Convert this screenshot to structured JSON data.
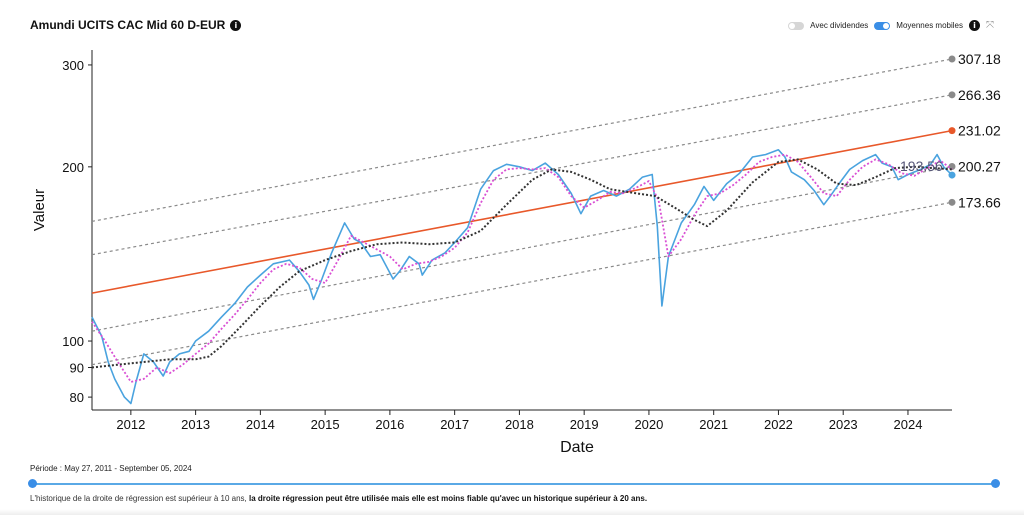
{
  "header": {
    "title": "Amundi UCITS CAC Mid 60 D-EUR",
    "toggle_dividends_label": "Avec dividendes",
    "toggle_dividends_on": false,
    "toggle_ma_label": "Moyennes mobiles",
    "toggle_ma_on": true
  },
  "footer": {
    "period_text": "Période : May 27, 2011 - September 05, 2024",
    "note_part1": "L'historique de la droite de régression est supérieur à 10 ans, ",
    "note_part2": "la droite régression peut être utilisée mais elle est moins fiable qu'avec un historique supérieur à 20 ans."
  },
  "colors": {
    "price": "#4aa3df",
    "ma_short": "#d94fd4",
    "ma_long": "#333333",
    "regression": "#e8582a",
    "channel": "#8a8a8a",
    "end_label": "#333333",
    "last_value": "#555577"
  },
  "chart_data": {
    "type": "line",
    "xlabel": "Date",
    "ylabel": "Valeur",
    "y_scale": "log",
    "xlim": [
      2011.4,
      2024.68
    ],
    "ylim": [
      76,
      307.18
    ],
    "x_ticks": [
      "2012",
      "2013",
      "2014",
      "2015",
      "2016",
      "2017",
      "2018",
      "2019",
      "2020",
      "2021",
      "2022",
      "2023",
      "2024"
    ],
    "y_ticks": [
      80,
      90,
      100,
      200,
      300
    ],
    "last_value": 193.56,
    "lines": [
      {
        "name": "upper2",
        "value_end": 307.18,
        "value_start": 161,
        "style": "dashed"
      },
      {
        "name": "upper1",
        "value_end": 266.36,
        "value_start": 141,
        "style": "dashed"
      },
      {
        "name": "regression",
        "value_end": 231.02,
        "value_start": 121,
        "style": "solid"
      },
      {
        "name": "lower1",
        "value_end": 200.27,
        "value_start": 104,
        "style": "dashed"
      },
      {
        "name": "lower2",
        "value_end": 173.66,
        "value_start": 91,
        "style": "dashed"
      }
    ],
    "end_labels": [
      "307.18",
      "266.36",
      "231.02",
      "200.27",
      "173.66"
    ],
    "price_series": {
      "x": [
        2011.4,
        2011.55,
        2011.65,
        2011.75,
        2011.9,
        2012.0,
        2012.08,
        2012.2,
        2012.35,
        2012.5,
        2012.6,
        2012.75,
        2012.9,
        2013.0,
        2013.2,
        2013.4,
        2013.6,
        2013.8,
        2014.0,
        2014.2,
        2014.45,
        2014.6,
        2014.75,
        2014.82,
        2014.95,
        2015.1,
        2015.3,
        2015.45,
        2015.55,
        2015.7,
        2015.85,
        2016.05,
        2016.15,
        2016.3,
        2016.45,
        2016.5,
        2016.65,
        2016.85,
        2017.0,
        2017.2,
        2017.4,
        2017.6,
        2017.8,
        2018.0,
        2018.2,
        2018.4,
        2018.6,
        2018.8,
        2018.95,
        2019.1,
        2019.3,
        2019.5,
        2019.7,
        2019.9,
        2020.05,
        2020.13,
        2020.2,
        2020.3,
        2020.5,
        2020.7,
        2020.85,
        2021.0,
        2021.2,
        2021.4,
        2021.6,
        2021.8,
        2022.0,
        2022.1,
        2022.2,
        2022.4,
        2022.55,
        2022.7,
        2022.8,
        2022.95,
        2023.1,
        2023.3,
        2023.5,
        2023.6,
        2023.75,
        2023.85,
        2024.0,
        2024.2,
        2024.35,
        2024.45,
        2024.55,
        2024.68
      ],
      "y": [
        110,
        102,
        92,
        86,
        80,
        78,
        85,
        95,
        92,
        87,
        92,
        95,
        96,
        100,
        104,
        110,
        116,
        124,
        130,
        136,
        138,
        132,
        125,
        118,
        128,
        142,
        160,
        150,
        148,
        140,
        141,
        128,
        132,
        140,
        136,
        130,
        138,
        142,
        148,
        157,
        183,
        197,
        202,
        200,
        197,
        203,
        194,
        180,
        166,
        178,
        182,
        178,
        183,
        192,
        194,
        158,
        115,
        140,
        160,
        172,
        185,
        175,
        187,
        195,
        208,
        210,
        214,
        208,
        196,
        190,
        182,
        172,
        178,
        188,
        198,
        205,
        210,
        203,
        200,
        190,
        194,
        198,
        202,
        210,
        200,
        193.56
      ]
    },
    "ma_short": {
      "x": [
        2011.4,
        2011.6,
        2011.8,
        2012.0,
        2012.2,
        2012.4,
        2012.6,
        2012.8,
        2013.0,
        2013.2,
        2013.4,
        2013.6,
        2013.8,
        2014.0,
        2014.2,
        2014.4,
        2014.6,
        2014.8,
        2015.0,
        2015.2,
        2015.4,
        2015.6,
        2015.8,
        2016.0,
        2016.2,
        2016.4,
        2016.6,
        2016.8,
        2017.0,
        2017.2,
        2017.4,
        2017.6,
        2017.8,
        2018.0,
        2018.2,
        2018.4,
        2018.6,
        2018.8,
        2019.0,
        2019.2,
        2019.4,
        2019.6,
        2019.8,
        2020.0,
        2020.15,
        2020.3,
        2020.5,
        2020.7,
        2020.9,
        2021.1,
        2021.3,
        2021.5,
        2021.7,
        2021.9,
        2022.1,
        2022.3,
        2022.5,
        2022.7,
        2022.9,
        2023.1,
        2023.3,
        2023.5,
        2023.7,
        2023.9,
        2024.1,
        2024.3,
        2024.5,
        2024.68
      ],
      "y": [
        108,
        100,
        92,
        85,
        86,
        90,
        88,
        91,
        95,
        99,
        105,
        111,
        118,
        126,
        133,
        136,
        134,
        128,
        126,
        138,
        152,
        148,
        144,
        140,
        133,
        136,
        137,
        140,
        145,
        154,
        173,
        190,
        198,
        199,
        198,
        199,
        192,
        178,
        170,
        175,
        181,
        180,
        184,
        189,
        175,
        140,
        150,
        165,
        178,
        180,
        186,
        194,
        204,
        208,
        210,
        204,
        192,
        180,
        178,
        190,
        200,
        206,
        202,
        195,
        193,
        199,
        205,
        198
      ]
    },
    "ma_long": {
      "x": [
        2011.4,
        2011.8,
        2012.2,
        2012.6,
        2013.0,
        2013.2,
        2013.4,
        2013.7,
        2014.0,
        2014.3,
        2014.6,
        2015.0,
        2015.4,
        2015.8,
        2016.2,
        2016.6,
        2017.0,
        2017.4,
        2017.8,
        2018.2,
        2018.5,
        2018.8,
        2019.1,
        2019.4,
        2019.8,
        2020.1,
        2020.4,
        2020.7,
        2020.9,
        2021.2,
        2021.6,
        2022.0,
        2022.3,
        2022.6,
        2022.9,
        2023.2,
        2023.5,
        2023.8,
        2024.1,
        2024.4,
        2024.68
      ],
      "y": [
        90,
        91,
        92,
        93,
        93,
        94,
        98,
        106,
        115,
        124,
        132,
        138,
        143,
        147,
        148,
        147,
        148,
        155,
        172,
        190,
        198,
        196,
        190,
        183,
        180,
        178,
        170,
        162,
        158,
        168,
        188,
        204,
        206,
        198,
        187,
        186,
        192,
        199,
        200,
        199,
        198
      ]
    }
  }
}
